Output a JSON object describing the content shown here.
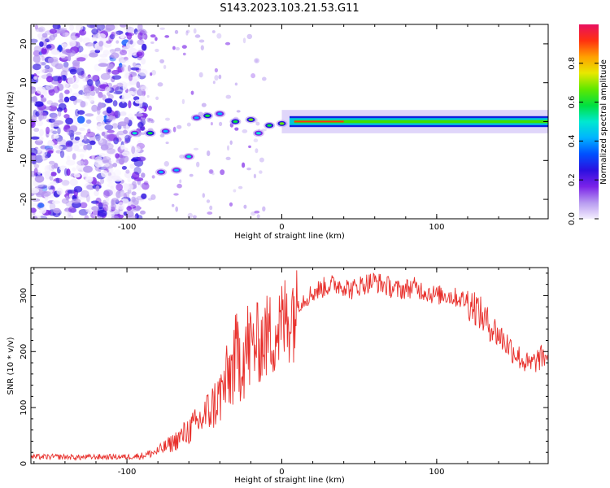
{
  "title": "S143.2023.103.21.53.G11",
  "chart_data": [
    {
      "type": "heatmap",
      "title": "S143.2023.103.21.53.G11",
      "xlabel": "Height of straight line (km)",
      "ylabel": "Frequency (Hz)",
      "xlim": [
        -162,
        172
      ],
      "ylim": [
        -25,
        25
      ],
      "x_ticks": [
        -100,
        0,
        100
      ],
      "y_ticks": [
        -20,
        -10,
        0,
        10,
        20
      ],
      "colorbar": {
        "label": "Normalized spectral amplitude",
        "range": [
          0,
          1
        ],
        "ticks": [
          "0.0",
          "0.2",
          "0.4",
          "0.6",
          "0.8"
        ],
        "colors": [
          "#f4eefe",
          "#b79af0",
          "#7a22e8",
          "#2b10e0",
          "#0050ff",
          "#00b4ff",
          "#00e8d0",
          "#00e040",
          "#60e800",
          "#e8e800",
          "#ffa000",
          "#ff3010",
          "#e81060"
        ]
      },
      "signal_track": [
        {
          "x": -95,
          "f": -3,
          "amp": 0.5
        },
        {
          "x": -85,
          "f": -3,
          "amp": 0.6
        },
        {
          "x": -75,
          "f": -2.5,
          "amp": 0.45
        },
        {
          "x": -78,
          "f": -13,
          "amp": 0.4
        },
        {
          "x": -68,
          "f": -12.5,
          "amp": 0.45
        },
        {
          "x": -60,
          "f": -9,
          "amp": 0.5
        },
        {
          "x": -55,
          "f": 1,
          "amp": 0.4
        },
        {
          "x": -48,
          "f": 1.5,
          "amp": 0.55
        },
        {
          "x": -40,
          "f": 2,
          "amp": 0.45
        },
        {
          "x": -30,
          "f": 0,
          "amp": 0.6
        },
        {
          "x": -20,
          "f": 0.5,
          "amp": 0.7
        },
        {
          "x": -15,
          "f": -3,
          "amp": 0.5
        },
        {
          "x": -8,
          "f": -1,
          "amp": 0.6
        },
        {
          "x": 0,
          "f": -0.5,
          "amp": 0.7
        },
        {
          "x": 10,
          "f": 0,
          "amp": 0.95
        },
        {
          "x": 40,
          "f": 0,
          "amp": 0.85
        },
        {
          "x": 80,
          "f": 0,
          "amp": 0.7
        },
        {
          "x": 120,
          "f": 0,
          "amp": 0.6
        },
        {
          "x": 170,
          "f": 0,
          "amp": 0.5
        }
      ]
    },
    {
      "type": "line",
      "xlabel": "Height of straight line (km)",
      "ylabel": "SNR (10 * v/v)",
      "xlim": [
        -162,
        172
      ],
      "ylim": [
        0,
        350
      ],
      "x_ticks": [
        -100,
        0,
        100
      ],
      "y_ticks": [
        0,
        100,
        200,
        300
      ],
      "series": [
        {
          "color": "#e8302c",
          "x": [
            -162,
            -150,
            -140,
            -130,
            -120,
            -110,
            -100,
            -90,
            -85,
            -80,
            -75,
            -70,
            -65,
            -60,
            -55,
            -50,
            -45,
            -40,
            -35,
            -30,
            -25,
            -20,
            -15,
            -10,
            -5,
            0,
            5,
            10,
            15,
            20,
            25,
            30,
            35,
            40,
            45,
            50,
            55,
            60,
            65,
            70,
            75,
            80,
            85,
            90,
            95,
            100,
            105,
            110,
            115,
            120,
            125,
            130,
            135,
            140,
            145,
            150,
            155,
            160,
            165,
            172
          ],
          "y": [
            12,
            12,
            12,
            11,
            12,
            12,
            12,
            14,
            18,
            22,
            30,
            38,
            48,
            60,
            70,
            85,
            100,
            120,
            150,
            185,
            200,
            210,
            215,
            225,
            235,
            245,
            270,
            285,
            295,
            305,
            312,
            318,
            320,
            318,
            310,
            318,
            322,
            325,
            320,
            315,
            310,
            312,
            315,
            310,
            305,
            300,
            302,
            298,
            295,
            290,
            280,
            260,
            245,
            230,
            215,
            200,
            185,
            175,
            185,
            195
          ]
        }
      ]
    }
  ]
}
